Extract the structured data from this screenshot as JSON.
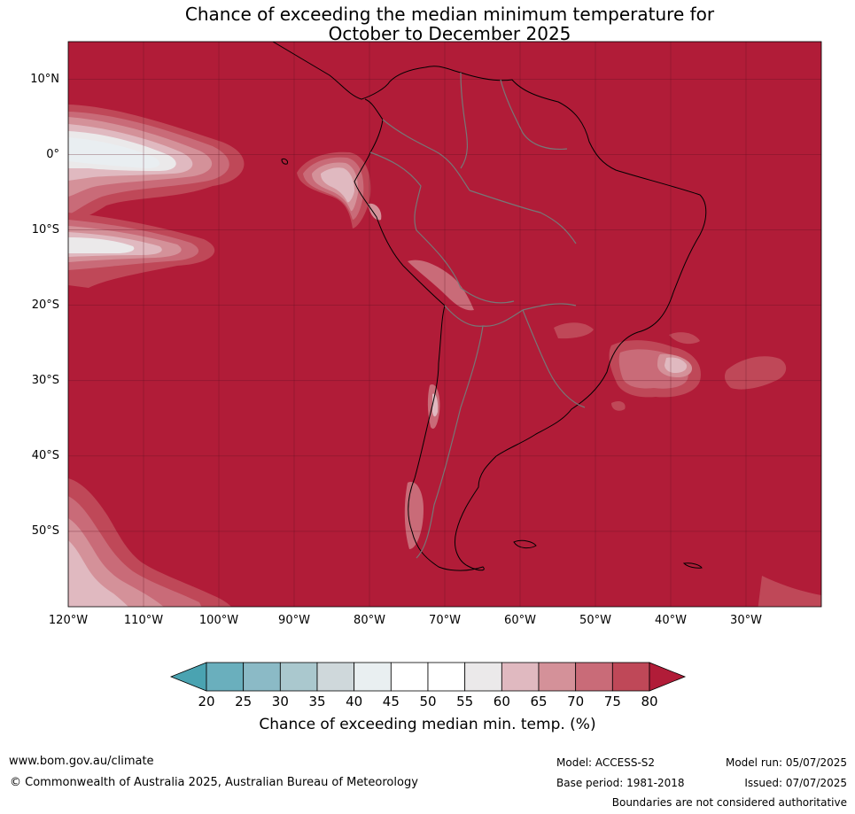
{
  "title_line1": "Chance of exceeding the median minimum temperature for",
  "title_line2": "October to December 2025",
  "map": {
    "lon_range": [
      -120,
      -20
    ],
    "lat_range": [
      -60,
      15
    ],
    "lat_ticks": [
      {
        "value": 10,
        "label": "10°N"
      },
      {
        "value": 0,
        "label": "0°"
      },
      {
        "value": -10,
        "label": "10°S"
      },
      {
        "value": -20,
        "label": "20°S"
      },
      {
        "value": -30,
        "label": "30°S"
      },
      {
        "value": -40,
        "label": "40°S"
      },
      {
        "value": -50,
        "label": "50°S"
      }
    ],
    "lon_ticks": [
      {
        "value": -120,
        "label": "120°W"
      },
      {
        "value": -110,
        "label": "110°W"
      },
      {
        "value": -100,
        "label": "100°W"
      },
      {
        "value": -90,
        "label": "90°W"
      },
      {
        "value": -80,
        "label": "80°W"
      },
      {
        "value": -70,
        "label": "70°W"
      },
      {
        "value": -60,
        "label": "60°W"
      },
      {
        "value": -50,
        "label": "50°W"
      },
      {
        "value": -40,
        "label": "40°W"
      },
      {
        "value": -30,
        "label": "30°W"
      }
    ],
    "background_color": "#b11c38",
    "colors": {
      "p60_65": "#e0b9c0",
      "p65_70": "#d49199",
      "p70_75": "#c96b78",
      "p75_80": "#bf4858",
      "p55_60": "#ebe9ea",
      "p50_55": "#ffffff",
      "p45_50": "#e9eef1"
    }
  },
  "colorbar": {
    "levels": [
      20,
      25,
      30,
      35,
      40,
      45,
      50,
      55,
      60,
      65,
      70,
      75,
      80
    ],
    "under_color": "#4aa3b1",
    "over_color": "#b11c38",
    "colors": [
      "#6aafbd",
      "#8bbac6",
      "#aac8ce",
      "#cfd8db",
      "#e9eff1",
      "#ffffff",
      "#ffffff",
      "#ebe9ea",
      "#e0b9c0",
      "#d49199",
      "#c96b78",
      "#bf4858"
    ],
    "label": "Chance of exceeding median min. temp. (%)"
  },
  "footer": {
    "website": "www.bom.gov.au/climate",
    "copyright": "© Commonwealth of Australia 2025, Australian Bureau of Meteorology",
    "model": "Model: ACCESS-S2",
    "base_period": "Base period: 1981-2018",
    "model_run": "Model run: 05/07/2025",
    "issued": "Issued: 07/07/2025",
    "disclaimer": "Boundaries are not considered authoritative"
  }
}
